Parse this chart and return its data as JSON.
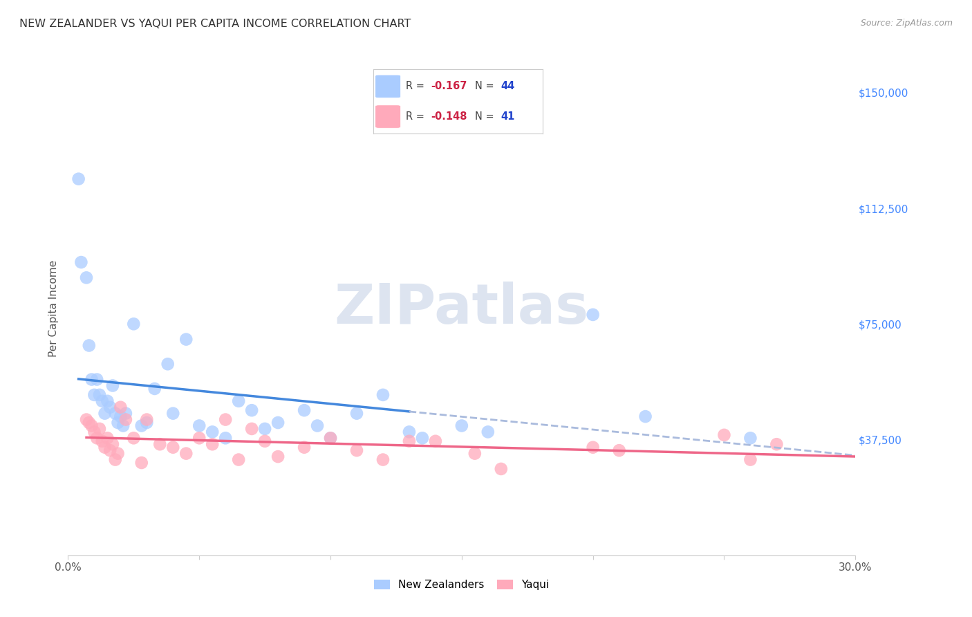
{
  "title": "NEW ZEALANDER VS YAQUI PER CAPITA INCOME CORRELATION CHART",
  "source": "Source: ZipAtlas.com",
  "ylabel": "Per Capita Income",
  "xlim": [
    0.0,
    0.3
  ],
  "ylim": [
    0,
    160000
  ],
  "yticks": [
    0,
    37500,
    75000,
    112500,
    150000
  ],
  "ytick_labels": [
    "",
    "$37,500",
    "$75,000",
    "$112,500",
    "$150,000"
  ],
  "xticks": [
    0.0,
    0.05,
    0.1,
    0.15,
    0.2,
    0.25,
    0.3
  ],
  "xtick_labels": [
    "0.0%",
    "",
    "",
    "",
    "",
    "",
    "30.0%"
  ],
  "background_color": "#ffffff",
  "grid_color": "#cccccc",
  "blue_color": "#aaccff",
  "pink_color": "#ffaabb",
  "blue_line_color": "#4488dd",
  "pink_line_color": "#ee6688",
  "dashed_color": "#aabbdd",
  "tick_label_color": "#4488ff",
  "watermark_color": "#dde4f0",
  "watermark": "ZIPatlas",
  "legend_blue_R": "-0.167",
  "legend_blue_N": "44",
  "legend_pink_R": "-0.148",
  "legend_pink_N": "41",
  "blue_scatter_x": [
    0.004,
    0.005,
    0.007,
    0.008,
    0.009,
    0.01,
    0.011,
    0.012,
    0.013,
    0.014,
    0.015,
    0.016,
    0.017,
    0.018,
    0.019,
    0.02,
    0.021,
    0.022,
    0.025,
    0.028,
    0.03,
    0.033,
    0.038,
    0.04,
    0.045,
    0.05,
    0.055,
    0.06,
    0.065,
    0.07,
    0.075,
    0.08,
    0.09,
    0.095,
    0.1,
    0.11,
    0.12,
    0.13,
    0.135,
    0.15,
    0.16,
    0.2,
    0.22,
    0.26
  ],
  "blue_scatter_y": [
    122000,
    95000,
    90000,
    68000,
    57000,
    52000,
    57000,
    52000,
    50000,
    46000,
    50000,
    48000,
    55000,
    46000,
    43000,
    45000,
    42000,
    46000,
    75000,
    42000,
    43000,
    54000,
    62000,
    46000,
    70000,
    42000,
    40000,
    38000,
    50000,
    47000,
    41000,
    43000,
    47000,
    42000,
    38000,
    46000,
    52000,
    40000,
    38000,
    42000,
    40000,
    78000,
    45000,
    38000
  ],
  "pink_scatter_x": [
    0.007,
    0.008,
    0.009,
    0.01,
    0.011,
    0.012,
    0.013,
    0.014,
    0.015,
    0.016,
    0.017,
    0.018,
    0.019,
    0.02,
    0.022,
    0.025,
    0.028,
    0.03,
    0.035,
    0.04,
    0.045,
    0.05,
    0.055,
    0.06,
    0.065,
    0.07,
    0.075,
    0.08,
    0.09,
    0.1,
    0.11,
    0.12,
    0.13,
    0.14,
    0.155,
    0.165,
    0.2,
    0.21,
    0.25,
    0.26,
    0.27
  ],
  "pink_scatter_y": [
    44000,
    43000,
    42000,
    40000,
    38000,
    41000,
    37000,
    35000,
    38000,
    34000,
    36000,
    31000,
    33000,
    48000,
    44000,
    38000,
    30000,
    44000,
    36000,
    35000,
    33000,
    38000,
    36000,
    44000,
    31000,
    41000,
    37000,
    32000,
    35000,
    38000,
    34000,
    31000,
    37000,
    37000,
    33000,
    28000,
    35000,
    34000,
    39000,
    31000,
    36000
  ]
}
